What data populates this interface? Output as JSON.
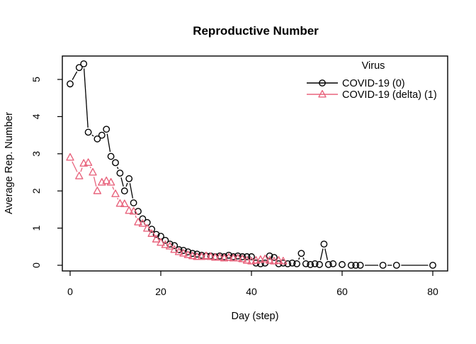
{
  "chart_data": {
    "type": "line",
    "style": "r-base-plot type=b (open markers with broken connecting segments)",
    "title": "Reproductive Number",
    "xlabel": "Day (step)",
    "ylabel": "Average Rep. Number",
    "x_ticks": [
      0,
      20,
      40,
      60,
      80
    ],
    "y_ticks": [
      0,
      1,
      2,
      3,
      4,
      5
    ],
    "xlim": [
      0,
      80
    ],
    "ylim": [
      0,
      5.6
    ],
    "grid": false,
    "legend_title": "Virus",
    "legend_position": "top-right",
    "background": "#ffffff",
    "series": [
      {
        "name": "COVID-19 (0)",
        "color": "#000000",
        "marker": "circle",
        "points": [
          [
            0,
            4.88
          ],
          [
            2,
            5.32
          ],
          [
            3,
            5.42
          ],
          [
            4,
            3.58
          ],
          [
            6,
            3.4
          ],
          [
            7,
            3.5
          ],
          [
            8,
            3.66
          ],
          [
            9,
            2.93
          ],
          [
            10,
            2.76
          ],
          [
            11,
            2.48
          ],
          [
            12,
            2.0
          ],
          [
            13,
            2.33
          ],
          [
            14,
            1.68
          ],
          [
            15,
            1.45
          ],
          [
            16,
            1.25
          ],
          [
            17,
            1.15
          ],
          [
            18,
            0.97
          ],
          [
            19,
            0.83
          ],
          [
            20,
            0.78
          ],
          [
            21,
            0.67
          ],
          [
            22,
            0.57
          ],
          [
            23,
            0.53
          ],
          [
            24,
            0.42
          ],
          [
            25,
            0.4
          ],
          [
            26,
            0.36
          ],
          [
            27,
            0.32
          ],
          [
            28,
            0.3
          ],
          [
            29,
            0.27
          ],
          [
            30,
            0.25
          ],
          [
            31,
            0.25
          ],
          [
            32,
            0.23
          ],
          [
            33,
            0.25
          ],
          [
            34,
            0.23
          ],
          [
            35,
            0.27
          ],
          [
            36,
            0.23
          ],
          [
            37,
            0.25
          ],
          [
            38,
            0.23
          ],
          [
            39,
            0.23
          ],
          [
            40,
            0.23
          ],
          [
            41,
            0.06
          ],
          [
            42,
            0.04
          ],
          [
            43,
            0.06
          ],
          [
            44,
            0.25
          ],
          [
            45,
            0.21
          ],
          [
            46,
            0.04
          ],
          [
            47,
            0.06
          ],
          [
            48,
            0.04
          ],
          [
            49,
            0.06
          ],
          [
            50,
            0.04
          ],
          [
            51,
            0.32
          ],
          [
            52,
            0.04
          ],
          [
            53,
            0.02
          ],
          [
            54,
            0.04
          ],
          [
            55,
            0.02
          ],
          [
            56,
            0.57
          ],
          [
            57,
            0.02
          ],
          [
            58,
            0.04
          ],
          [
            60,
            0.02
          ],
          [
            62,
            0.0
          ],
          [
            63,
            0.0
          ],
          [
            64,
            0.0
          ],
          [
            69,
            0.0
          ],
          [
            72,
            0.0
          ],
          [
            80,
            0.0
          ]
        ]
      },
      {
        "name": "COVID-19 (delta) (1)",
        "color": "#E8647D",
        "marker": "triangle",
        "points": [
          [
            0,
            2.9
          ],
          [
            2,
            2.4
          ],
          [
            3,
            2.74
          ],
          [
            4,
            2.76
          ],
          [
            5,
            2.5
          ],
          [
            6,
            2.0
          ],
          [
            7,
            2.23
          ],
          [
            8,
            2.27
          ],
          [
            9,
            2.23
          ],
          [
            10,
            1.92
          ],
          [
            11,
            1.66
          ],
          [
            12,
            1.65
          ],
          [
            13,
            1.47
          ],
          [
            14,
            1.45
          ],
          [
            15,
            1.16
          ],
          [
            16,
            1.12
          ],
          [
            17,
            0.99
          ],
          [
            18,
            0.85
          ],
          [
            19,
            0.7
          ],
          [
            20,
            0.61
          ],
          [
            21,
            0.55
          ],
          [
            22,
            0.51
          ],
          [
            23,
            0.42
          ],
          [
            24,
            0.36
          ],
          [
            25,
            0.32
          ],
          [
            26,
            0.28
          ],
          [
            27,
            0.25
          ],
          [
            28,
            0.23
          ],
          [
            29,
            0.23
          ],
          [
            30,
            0.25
          ],
          [
            31,
            0.23
          ],
          [
            32,
            0.21
          ],
          [
            33,
            0.21
          ],
          [
            34,
            0.19
          ],
          [
            35,
            0.21
          ],
          [
            36,
            0.19
          ],
          [
            37,
            0.19
          ],
          [
            38,
            0.17
          ],
          [
            39,
            0.13
          ],
          [
            40,
            0.11
          ],
          [
            41,
            0.13
          ],
          [
            42,
            0.15
          ],
          [
            43,
            0.17
          ],
          [
            44,
            0.13
          ],
          [
            45,
            0.11
          ],
          [
            46,
            0.13
          ],
          [
            47,
            0.11
          ]
        ]
      }
    ]
  }
}
